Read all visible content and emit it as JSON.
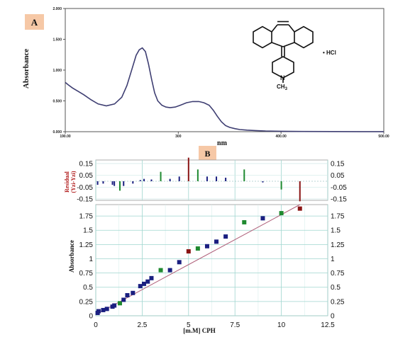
{
  "panel_labels": {
    "a": "A",
    "b": "B"
  },
  "structure": {
    "salt": "• HCl",
    "methyl": "CH",
    "methyl_sub": "3",
    "nitrogen": "N"
  },
  "colors": {
    "spectrum": "#3e3e72",
    "label_box": "#f6c8a6",
    "residual_axis_label": "#b01818",
    "grid": "#9fd6cf",
    "fit_line": "#b0607a",
    "blue": "#1a1f80",
    "green": "#1f8a30",
    "red": "#8a1414",
    "right_axis_ticks": "#2a2f8c"
  },
  "chart_data": [
    {
      "type": "line",
      "panel": "A",
      "xlabel": "nm",
      "ylabel": "Absorbance",
      "xlim": [
        190,
        500
      ],
      "ylim": [
        0,
        2
      ],
      "x_ticks": [
        "190.00",
        "300",
        "400.00",
        "500.00"
      ],
      "y_ticks": [
        "0.000",
        "0.500",
        "1.000",
        "1.500",
        "2.000"
      ],
      "series": [
        {
          "x": [
            190,
            193,
            197,
            202,
            208,
            215,
            222,
            230,
            238,
            245,
            250,
            255,
            259,
            262,
            265,
            268,
            271,
            274,
            277,
            280,
            284,
            288,
            292,
            297,
            302,
            308,
            314,
            320,
            325,
            330,
            334,
            338,
            342,
            346,
            350,
            355,
            360,
            367,
            375,
            385,
            400,
            420,
            450,
            480,
            500
          ],
          "y": [
            0.8,
            0.76,
            0.71,
            0.66,
            0.6,
            0.52,
            0.45,
            0.42,
            0.45,
            0.56,
            0.75,
            1.02,
            1.24,
            1.33,
            1.36,
            1.3,
            1.1,
            0.85,
            0.63,
            0.5,
            0.43,
            0.4,
            0.39,
            0.4,
            0.43,
            0.47,
            0.49,
            0.49,
            0.47,
            0.43,
            0.35,
            0.25,
            0.16,
            0.1,
            0.07,
            0.05,
            0.035,
            0.025,
            0.018,
            0.012,
            0.007,
            0.004,
            0.002,
            0.001,
            0.001
          ]
        }
      ]
    },
    {
      "type": "scatter",
      "panel": "B",
      "xlabel": "[m.M] CPH",
      "ylabel": "Absorbance",
      "residual_ylabel": "Residual",
      "residual_ylabel2": "(Yzi-Yzi)",
      "xlim": [
        0,
        12.5
      ],
      "ylim": [
        0,
        1.95
      ],
      "x_ticks": [
        "0",
        "2.5",
        "5",
        "7.5",
        "10",
        "12.5"
      ],
      "y_ticks": [
        "0",
        "0.25",
        "0.5",
        "0.75",
        "1",
        "1.25",
        "1.5",
        "1.75"
      ],
      "residual_ylim": [
        -0.18,
        0.2
      ],
      "residual_ticks": [
        "0.15",
        "0.05",
        "-0.05",
        "-0.15"
      ],
      "fit_line": {
        "x": [
          0,
          11
        ],
        "y": [
          0.02,
          1.95
        ]
      },
      "points": [
        {
          "x": 0.1,
          "y": 0.05,
          "c": "blue"
        },
        {
          "x": 0.15,
          "y": 0.08,
          "c": "blue"
        },
        {
          "x": 0.4,
          "y": 0.1,
          "c": "blue"
        },
        {
          "x": 0.6,
          "y": 0.12,
          "c": "blue"
        },
        {
          "x": 0.9,
          "y": 0.16,
          "c": "blue"
        },
        {
          "x": 1.0,
          "y": 0.18,
          "c": "blue"
        },
        {
          "x": 1.3,
          "y": 0.22,
          "c": "green"
        },
        {
          "x": 1.5,
          "y": 0.28,
          "c": "blue"
        },
        {
          "x": 1.7,
          "y": 0.36,
          "c": "blue"
        },
        {
          "x": 2.0,
          "y": 0.4,
          "c": "blue"
        },
        {
          "x": 2.4,
          "y": 0.52,
          "c": "blue"
        },
        {
          "x": 2.6,
          "y": 0.56,
          "c": "blue"
        },
        {
          "x": 2.8,
          "y": 0.6,
          "c": "blue"
        },
        {
          "x": 3.0,
          "y": 0.66,
          "c": "blue"
        },
        {
          "x": 3.5,
          "y": 0.8,
          "c": "green"
        },
        {
          "x": 4.0,
          "y": 0.8,
          "c": "blue"
        },
        {
          "x": 4.5,
          "y": 0.94,
          "c": "blue"
        },
        {
          "x": 5.0,
          "y": 1.13,
          "c": "red"
        },
        {
          "x": 5.5,
          "y": 1.18,
          "c": "green"
        },
        {
          "x": 6.0,
          "y": 1.22,
          "c": "blue"
        },
        {
          "x": 6.5,
          "y": 1.3,
          "c": "blue"
        },
        {
          "x": 7.0,
          "y": 1.39,
          "c": "blue"
        },
        {
          "x": 8.0,
          "y": 1.64,
          "c": "green"
        },
        {
          "x": 9.0,
          "y": 1.71,
          "c": "blue"
        },
        {
          "x": 10.0,
          "y": 1.8,
          "c": "green"
        },
        {
          "x": 11.0,
          "y": 1.88,
          "c": "red"
        }
      ],
      "residuals": [
        {
          "x": 0.1,
          "r": -0.03,
          "c": "blue"
        },
        {
          "x": 0.4,
          "r": -0.02,
          "c": "blue"
        },
        {
          "x": 0.9,
          "r": -0.03,
          "c": "blue"
        },
        {
          "x": 1.0,
          "r": -0.04,
          "c": "blue"
        },
        {
          "x": 1.3,
          "r": -0.08,
          "c": "green"
        },
        {
          "x": 1.5,
          "r": -0.04,
          "c": "blue"
        },
        {
          "x": 2.0,
          "r": -0.02,
          "c": "blue"
        },
        {
          "x": 2.4,
          "r": 0.01,
          "c": "blue"
        },
        {
          "x": 2.6,
          "r": 0.02,
          "c": "blue"
        },
        {
          "x": 3.0,
          "r": 0.015,
          "c": "blue"
        },
        {
          "x": 3.5,
          "r": 0.08,
          "c": "green"
        },
        {
          "x": 4.0,
          "r": 0.02,
          "c": "blue"
        },
        {
          "x": 4.5,
          "r": 0.04,
          "c": "blue"
        },
        {
          "x": 5.0,
          "r": 0.2,
          "c": "red"
        },
        {
          "x": 5.5,
          "r": 0.1,
          "c": "green"
        },
        {
          "x": 6.0,
          "r": 0.04,
          "c": "blue"
        },
        {
          "x": 6.5,
          "r": 0.04,
          "c": "blue"
        },
        {
          "x": 7.0,
          "r": 0.03,
          "c": "blue"
        },
        {
          "x": 8.0,
          "r": 0.1,
          "c": "green"
        },
        {
          "x": 9.0,
          "r": -0.01,
          "c": "blue"
        },
        {
          "x": 10.0,
          "r": -0.07,
          "c": "green"
        },
        {
          "x": 11.0,
          "r": -0.17,
          "c": "red"
        }
      ]
    }
  ]
}
